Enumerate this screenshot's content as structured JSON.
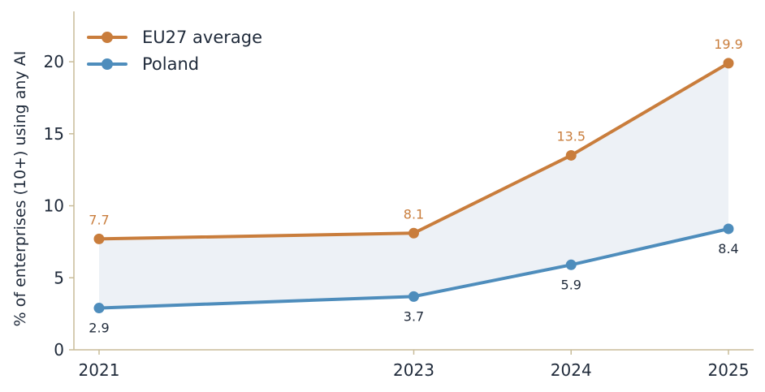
{
  "chart_data": {
    "type": "line",
    "title": "",
    "xlabel": "",
    "ylabel": "% of enterprises (10+) using any AI",
    "x": [
      2021,
      2023,
      2024,
      2025
    ],
    "x_tick_labels": [
      "2021",
      "2023",
      "2024",
      "2025"
    ],
    "ylim": [
      0,
      23.5
    ],
    "y_ticks": [
      0,
      5,
      10,
      15,
      20
    ],
    "y_tick_labels": [
      "0",
      "5",
      "10",
      "15",
      "20"
    ],
    "grid": false,
    "legend_position": "top-left",
    "fill_between": true,
    "series": [
      {
        "name": "EU27 average",
        "color": "#c97d3c",
        "values": [
          7.7,
          8.1,
          13.5,
          19.9
        ],
        "labels": [
          "7.7",
          "8.1",
          "13.5",
          "19.9"
        ],
        "label_position": "above"
      },
      {
        "name": "Poland",
        "color": "#4e8dbc",
        "values": [
          2.9,
          3.7,
          5.9,
          8.4
        ],
        "labels": [
          "2.9",
          "3.7",
          "5.9",
          "8.4"
        ],
        "label_position": "below"
      }
    ],
    "colors": {
      "axis": "#c8bc99",
      "fill": "#dbe4ee",
      "poland_label": "#1f2a3a"
    }
  }
}
